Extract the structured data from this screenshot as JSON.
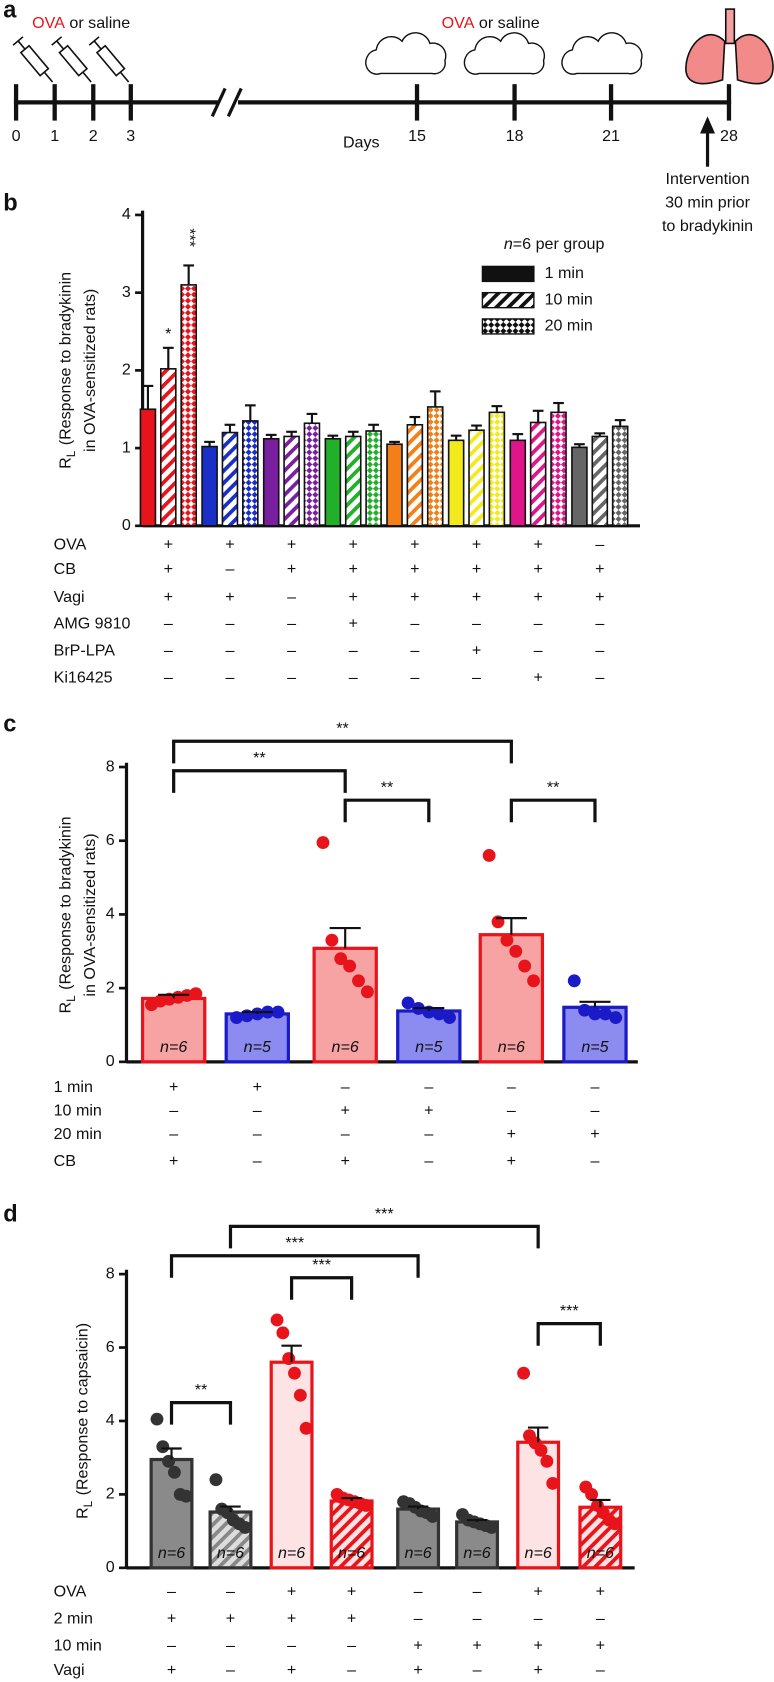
{
  "panel_letters": [
    "a",
    "b",
    "c",
    "d"
  ],
  "timeline": {
    "agent": "OVA",
    "agent_color": "#e8141b",
    "treatment_rest": " or saline",
    "days": [
      0,
      1,
      2,
      3,
      15,
      18,
      21,
      28
    ],
    "axis_label": "Days",
    "intervention": [
      "Intervention",
      "30 min prior",
      "to bradykinin"
    ]
  },
  "chart_data": [
    {
      "type": "grouped_bar",
      "ylabel_symbol": "R",
      "ylabel_subscript": "L",
      "ylabel": [
        "(Response to bradykinin",
        "in OVA-sensitized rats)"
      ],
      "ylim": [
        0,
        4
      ],
      "yticks": [
        0,
        1,
        2,
        3,
        4
      ],
      "group_colors": [
        "#e8141b",
        "#1a2fc8",
        "#7a1fa0",
        "#22b02a",
        "#f57f17",
        "#f2ea1a",
        "#e0158a",
        "#666666"
      ],
      "legend_title": [
        "n",
        "=6 per group"
      ],
      "series": [
        {
          "name": "1 min",
          "pattern": "solid",
          "values": [
            1.5,
            1.02,
            1.12,
            1.12,
            1.05,
            1.1,
            1.1,
            1.01
          ],
          "errors": [
            0.3,
            0.06,
            0.05,
            0.04,
            0.03,
            0.06,
            0.08,
            0.04
          ],
          "significance": [
            null,
            null,
            null,
            null,
            null,
            null,
            null,
            null
          ]
        },
        {
          "name": "10 min",
          "pattern": "hatch",
          "values": [
            2.02,
            1.2,
            1.15,
            1.15,
            1.3,
            1.23,
            1.33,
            1.15
          ],
          "errors": [
            0.27,
            0.1,
            0.06,
            0.06,
            0.1,
            0.06,
            0.15,
            0.04
          ],
          "significance": [
            "*",
            null,
            null,
            null,
            null,
            null,
            null,
            null
          ]
        },
        {
          "name": "20 min",
          "pattern": "cross",
          "values": [
            3.1,
            1.35,
            1.32,
            1.22,
            1.53,
            1.46,
            1.46,
            1.28
          ],
          "errors": [
            0.25,
            0.2,
            0.12,
            0.08,
            0.2,
            0.08,
            0.12,
            0.08
          ],
          "significance": [
            "***",
            null,
            null,
            null,
            null,
            null,
            null,
            null
          ]
        }
      ],
      "conditions": [
        {
          "label": "OVA",
          "color": "#e8141b",
          "marks": [
            "+",
            "+",
            "+",
            "+",
            "+",
            "+",
            "+",
            "–"
          ]
        },
        {
          "label": "CB",
          "marks": [
            "+",
            "–",
            "+",
            "+",
            "+",
            "+",
            "+",
            "+"
          ]
        },
        {
          "label": "Vagi",
          "marks": [
            "+",
            "+",
            "–",
            "+",
            "+",
            "+",
            "+",
            "+"
          ]
        },
        {
          "label": "AMG 9810",
          "marks": [
            "–",
            "–",
            "–",
            "+",
            "–",
            "–",
            "–",
            "–"
          ]
        },
        {
          "label": "BrP-LPA",
          "marks": [
            "–",
            "–",
            "–",
            "–",
            "–",
            "+",
            "–",
            "–"
          ]
        },
        {
          "label": "Ki16425",
          "marks": [
            "–",
            "–",
            "–",
            "–",
            "–",
            "–",
            "+",
            "–"
          ]
        }
      ]
    },
    {
      "type": "bar",
      "ylabel_symbol": "R",
      "ylabel_subscript": "L",
      "ylabel": [
        "(Response to bradykinin",
        "in OVA-sensitized rats)"
      ],
      "ylim": [
        0,
        8
      ],
      "yticks": [
        0,
        2,
        4,
        6,
        8
      ],
      "values": [
        1.72,
        1.3,
        3.08,
        1.38,
        3.45,
        1.48
      ],
      "errors": [
        0.1,
        0.05,
        0.55,
        0.08,
        0.45,
        0.15
      ],
      "points": [
        [
          1.55,
          1.65,
          1.7,
          1.75,
          1.8,
          1.85
        ],
        [
          1.2,
          1.25,
          1.3,
          1.35,
          1.35
        ],
        [
          5.95,
          3.3,
          2.8,
          2.6,
          2.2,
          1.9
        ],
        [
          1.6,
          1.45,
          1.35,
          1.3,
          1.2
        ],
        [
          5.6,
          3.8,
          3.3,
          3.0,
          2.6,
          2.2
        ],
        [
          2.2,
          1.4,
          1.3,
          1.3,
          1.2
        ]
      ],
      "n_labels": [
        "n=6",
        "n=5",
        "n=6",
        "n=5",
        "n=6",
        "n=5"
      ],
      "colors": [
        "#e8141b",
        "#1a1ac8",
        "#e8141b",
        "#1a1ac8",
        "#e8141b",
        "#1a1ac8"
      ],
      "fills": [
        "#f7a3a3",
        "#8c8cf0",
        "#f7a3a3",
        "#8c8cf0",
        "#f7a3a3",
        "#8c8cf0"
      ],
      "brackets": [
        {
          "from": 0,
          "to": 2,
          "label": "**"
        },
        {
          "from": 0,
          "to": 4,
          "label": "**"
        },
        {
          "from": 2,
          "to": 3,
          "label": "**"
        },
        {
          "from": 4,
          "to": 5,
          "label": "**"
        }
      ],
      "conditions": [
        {
          "label": "1 min",
          "marks": [
            "+",
            "+",
            "–",
            "–",
            "–",
            "–"
          ]
        },
        {
          "label": "10 min",
          "marks": [
            "–",
            "–",
            "+",
            "+",
            "–",
            "–"
          ]
        },
        {
          "label": "20 min",
          "marks": [
            "–",
            "–",
            "–",
            "–",
            "+",
            "+"
          ]
        },
        {
          "label": "CB",
          "marks": [
            "+",
            "–",
            "+",
            "–",
            "+",
            "–"
          ]
        }
      ]
    },
    {
      "type": "bar",
      "ylabel_symbol": "R",
      "ylabel_subscript": "L",
      "ylabel": [
        "(Response to capsaicin)"
      ],
      "ylim": [
        0,
        8
      ],
      "yticks": [
        0,
        2,
        4,
        6,
        8
      ],
      "values": [
        2.95,
        1.52,
        5.6,
        1.82,
        1.6,
        1.25,
        3.42,
        1.65
      ],
      "errors": [
        0.3,
        0.15,
        0.45,
        0.08,
        0.07,
        0.05,
        0.4,
        0.2
      ],
      "points": [
        [
          4.05,
          3.3,
          2.9,
          2.6,
          2.0,
          1.95
        ],
        [
          2.4,
          1.6,
          1.5,
          1.3,
          1.2,
          1.1
        ],
        [
          6.75,
          6.4,
          5.7,
          5.3,
          4.7,
          3.8
        ],
        [
          2.0,
          1.9,
          1.85,
          1.8,
          1.75,
          1.7
        ],
        [
          1.8,
          1.75,
          1.65,
          1.55,
          1.5,
          1.4
        ],
        [
          1.45,
          1.3,
          1.25,
          1.2,
          1.15,
          1.1
        ],
        [
          5.3,
          3.6,
          3.4,
          3.2,
          2.9,
          2.3
        ],
        [
          2.2,
          2.0,
          1.7,
          1.5,
          1.3,
          1.2
        ]
      ],
      "n_labels": [
        "n=6",
        "n=6",
        "n=6",
        "n=6",
        "n=6",
        "n=6",
        "n=6",
        "n=6"
      ],
      "colors": [
        "#333333",
        "#333333",
        "#e8141b",
        "#e8141b",
        "#333333",
        "#333333",
        "#e8141b",
        "#e8141b"
      ],
      "fills": [
        "#8a8a8a",
        "#dddddd",
        "#fde3e3",
        "#fde3e3",
        "#8a8a8a",
        "#8a8a8a",
        "#fde3e3",
        "#fde3e3"
      ],
      "patterns": [
        "solid",
        "hatch",
        "solid",
        "hatch",
        "solid",
        "solid",
        "solid",
        "hatch"
      ],
      "brackets": [
        {
          "from": 0,
          "to": 1,
          "label": "**"
        },
        {
          "from": 2,
          "to": 3,
          "label": "***"
        },
        {
          "from": 0,
          "to": 4,
          "label": "***"
        },
        {
          "from": 1,
          "to": 6,
          "label": "***"
        },
        {
          "from": 6,
          "to": 7,
          "label": "***"
        }
      ],
      "conditions": [
        {
          "label": "OVA",
          "color": "#e8141b",
          "marks": [
            "–",
            "–",
            "+",
            "+",
            "–",
            "–",
            "+",
            "+"
          ]
        },
        {
          "label": "2 min",
          "marks": [
            "+",
            "+",
            "+",
            "+",
            "–",
            "–",
            "–",
            "–"
          ]
        },
        {
          "label": "10 min",
          "marks": [
            "–",
            "–",
            "–",
            "–",
            "+",
            "+",
            "+",
            "+"
          ]
        },
        {
          "label": "Vagi",
          "marks": [
            "+",
            "–",
            "+",
            "–",
            "+",
            "–",
            "+",
            "–"
          ]
        }
      ]
    }
  ]
}
